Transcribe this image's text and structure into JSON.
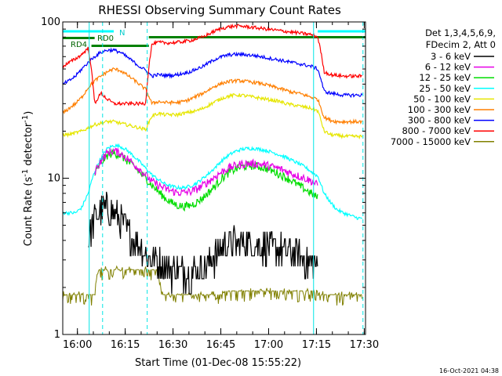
{
  "chart_data": {
    "type": "line",
    "title": "RHESSI Observing Summary Count Rates",
    "xlabel": "Start Time (01-Dec-08 15:55:22)",
    "ylabel": "Count Rate (s⁻¹ detector⁻¹)",
    "ylabel_main": "Count Rate (s",
    "ylabel_sup1": "-1",
    "ylabel_mid": " detector",
    "ylabel_sup2": "-1",
    "ylabel_end": ")",
    "y_scale": "log",
    "ylim": [
      1,
      100
    ],
    "y_ticks": [
      "1",
      "10",
      "100"
    ],
    "xlim_minutes": [
      0,
      95
    ],
    "x_ticks": [
      "16:00",
      "16:15",
      "16:30",
      "16:45",
      "17:00",
      "17:15",
      "17:30"
    ],
    "x_ticks_minutes": [
      4.6,
      19.6,
      34.6,
      49.6,
      64.6,
      79.6,
      94.6
    ],
    "legend": {
      "placement": "right",
      "header": [
        "Det 1,3,4,5,6,9,",
        "FDecim 2, Att 0"
      ]
    },
    "series": [
      {
        "name": "3 - 6 keV",
        "color": "#000000",
        "t": [
          8,
          10,
          12,
          14,
          16,
          18,
          20,
          22,
          24,
          26,
          28,
          30,
          32,
          34,
          36,
          38,
          40,
          42,
          44,
          46,
          48,
          50,
          52,
          54,
          56,
          58,
          60,
          62,
          64,
          66,
          68,
          70,
          72,
          74,
          76,
          78,
          80
        ],
        "values": [
          4,
          5.5,
          6.3,
          6.3,
          6,
          5.3,
          4.7,
          4,
          3.7,
          3.3,
          3,
          2.9,
          2.7,
          2.6,
          2.6,
          2.5,
          2.5,
          2.6,
          2.7,
          2.9,
          3.2,
          3.6,
          3.8,
          3.8,
          3.8,
          3.8,
          3.8,
          3.7,
          3.6,
          3.5,
          3.5,
          3.4,
          3.4,
          3.2,
          3,
          2.8,
          2.7
        ]
      },
      {
        "name": "6 - 12 keV",
        "color": "#e600e6",
        "t": [
          10,
          12,
          14,
          16,
          18,
          20,
          22,
          24,
          26,
          28,
          30,
          32,
          34,
          36,
          38,
          40,
          42,
          44,
          46,
          48,
          50,
          52,
          54,
          56,
          58,
          60,
          62,
          64,
          66,
          68,
          70,
          72,
          74,
          76,
          78,
          80
        ],
        "values": [
          11,
          13,
          14.5,
          15,
          14.5,
          13.5,
          12.5,
          11.5,
          10.5,
          9.5,
          9,
          8.6,
          8.3,
          8.1,
          8.1,
          8.2,
          8.5,
          9,
          9.6,
          10.3,
          11,
          11.6,
          12,
          12.3,
          12.4,
          12.4,
          12.3,
          12.1,
          11.8,
          11.5,
          11.1,
          10.7,
          10.3,
          10,
          9.6,
          9
        ]
      },
      {
        "name": "12 - 25 keV",
        "color": "#00dd00",
        "t": [
          10,
          12,
          14,
          16,
          18,
          20,
          22,
          24,
          26,
          28,
          30,
          32,
          34,
          36,
          38,
          40,
          42,
          44,
          46,
          48,
          50,
          52,
          54,
          56,
          58,
          60,
          62,
          64,
          66,
          68,
          70,
          72,
          74,
          76,
          78,
          80
        ],
        "values": [
          10.5,
          12.5,
          14,
          14.5,
          14,
          13,
          12,
          11,
          10,
          9,
          8.2,
          7.5,
          7,
          6.7,
          6.6,
          6.7,
          7,
          7.5,
          8.2,
          9,
          10,
          10.8,
          11.4,
          11.8,
          12,
          12,
          11.8,
          11.5,
          11.1,
          10.6,
          10.1,
          9.6,
          9,
          8.5,
          8,
          7.5
        ]
      },
      {
        "name": "25 - 50 keV",
        "color": "#00ffff",
        "t": [
          0,
          2,
          4,
          6,
          8,
          10,
          12,
          14,
          16,
          18,
          20,
          22,
          24,
          26,
          28,
          30,
          32,
          34,
          36,
          38,
          40,
          42,
          44,
          46,
          48,
          50,
          52,
          54,
          56,
          58,
          60,
          62,
          64,
          66,
          68,
          70,
          72,
          74,
          76,
          78,
          80,
          82,
          84,
          86,
          88,
          90,
          92,
          94
        ],
        "values": [
          6,
          6,
          6,
          6.5,
          8,
          11,
          13.5,
          15.5,
          16.2,
          16,
          15.2,
          14,
          12.8,
          11.6,
          10.5,
          9.8,
          9.2,
          8.9,
          8.7,
          8.7,
          8.9,
          9.3,
          10,
          10.8,
          11.8,
          13,
          14,
          14.8,
          15.3,
          15.5,
          15.5,
          15.3,
          15,
          14.6,
          14.1,
          13.6,
          13,
          12.4,
          11.8,
          11,
          10.3,
          8,
          7,
          6.3,
          6,
          5.8,
          5.6,
          5.5
        ]
      },
      {
        "name": "50 - 100 keV",
        "color": "#e6e600",
        "t": [
          0,
          2,
          4,
          6,
          8,
          10,
          12,
          14,
          16,
          18,
          20,
          22,
          24,
          26,
          28,
          30,
          32,
          34,
          36,
          38,
          40,
          42,
          44,
          46,
          48,
          50,
          52,
          54,
          56,
          58,
          60,
          62,
          64,
          66,
          68,
          70,
          72,
          74,
          76,
          78,
          80,
          82,
          84,
          86,
          88,
          90,
          92,
          94
        ],
        "values": [
          19,
          19,
          19.5,
          20,
          21,
          22,
          22.5,
          23,
          23,
          22.5,
          22,
          21.5,
          21,
          20.5,
          25,
          26,
          25.5,
          25.5,
          25.5,
          26,
          26.5,
          27,
          28,
          29.5,
          31,
          32.5,
          33.5,
          34,
          34,
          33.5,
          33,
          32.5,
          32,
          31.5,
          31,
          30,
          29.5,
          29,
          28.5,
          28,
          27,
          20,
          19,
          18.8,
          18.6,
          18.5,
          18.5,
          18.5
        ]
      },
      {
        "name": "100 - 300 keV",
        "color": "#ff7f00",
        "t": [
          0,
          2,
          4,
          6,
          8,
          10,
          12,
          14,
          16,
          18,
          20,
          22,
          24,
          26,
          28,
          30,
          32,
          34,
          36,
          38,
          40,
          42,
          44,
          46,
          48,
          50,
          52,
          54,
          56,
          58,
          60,
          62,
          64,
          66,
          68,
          70,
          72,
          74,
          76,
          78,
          80,
          82,
          84,
          86,
          88,
          90,
          92,
          94
        ],
        "values": [
          26,
          28,
          30,
          33,
          38,
          42,
          45,
          48,
          50,
          49,
          46,
          43,
          40,
          37,
          30,
          31,
          30.5,
          30.5,
          30.5,
          31,
          32,
          33.5,
          35,
          37,
          39,
          40.5,
          41.5,
          42,
          42,
          41.5,
          41,
          40.5,
          39.5,
          38.5,
          37.5,
          36.5,
          35.5,
          35,
          34,
          33,
          32,
          24.5,
          23.5,
          23,
          23,
          23,
          23,
          23
        ]
      },
      {
        "name": "300 - 800 keV",
        "color": "#0000ff",
        "t": [
          0,
          2,
          4,
          6,
          8,
          10,
          12,
          14,
          16,
          18,
          20,
          22,
          24,
          26,
          28,
          30,
          32,
          34,
          36,
          38,
          40,
          42,
          44,
          46,
          48,
          50,
          52,
          54,
          56,
          58,
          60,
          62,
          64,
          66,
          68,
          70,
          72,
          74,
          76,
          78,
          80,
          82,
          84,
          86,
          88,
          90,
          92,
          94
        ],
        "values": [
          40,
          42,
          45,
          50,
          55,
          60,
          64,
          66,
          66,
          64,
          60,
          56,
          52,
          49,
          45,
          46,
          45.5,
          45.5,
          46,
          47,
          48,
          50,
          52,
          55,
          58,
          60,
          61.5,
          62,
          62,
          61.5,
          61,
          60,
          59,
          58,
          57,
          56,
          55,
          54,
          53,
          52,
          50,
          36,
          35,
          34.5,
          34,
          34,
          34,
          34
        ]
      },
      {
        "name": "800 - 7000 keV",
        "color": "#ff0000",
        "t": [
          0,
          2,
          4,
          6,
          8,
          10,
          12,
          14,
          16,
          18,
          20,
          22,
          24,
          26,
          28,
          30,
          32,
          34,
          36,
          38,
          40,
          42,
          44,
          46,
          48,
          50,
          52,
          54,
          56,
          58,
          60,
          62,
          64,
          66,
          68,
          70,
          72,
          74,
          76,
          78,
          80,
          82,
          84,
          86,
          88,
          90,
          92,
          94
        ],
        "values": [
          52,
          55,
          58,
          62,
          68,
          30,
          35,
          32,
          30,
          30,
          30,
          30,
          30,
          30,
          72,
          74,
          73.5,
          73.5,
          74,
          75,
          76,
          78,
          80,
          84,
          88,
          91,
          93,
          94,
          94,
          93,
          92,
          91,
          90,
          89,
          88,
          87,
          86,
          85,
          84,
          83,
          80,
          48,
          46,
          45.5,
          45,
          45,
          45,
          45
        ]
      },
      {
        "name": "7000 - 15000 keV",
        "color": "#808000",
        "t": [
          0,
          10,
          11,
          30,
          31,
          50,
          51,
          80,
          81,
          94
        ],
        "values": [
          1.8,
          1.8,
          2.6,
          2.6,
          1.8,
          1.8,
          1.9,
          1.9,
          1.8,
          1.8
        ]
      }
    ],
    "annotations": {
      "attenuator_labels": [
        "N",
        "RD0",
        "RD4"
      ],
      "bars": [
        {
          "label": "N",
          "color": "#00ffff",
          "t_start": 0,
          "t_end": 16
        },
        {
          "label": "N",
          "color": "#00ffff",
          "t_start": 80,
          "t_end": 95
        },
        {
          "label": "RD0",
          "color": "#008000",
          "t_start": 0,
          "t_end": 10
        },
        {
          "label": "RD4",
          "color": "#008000",
          "t_start": 9,
          "t_end": 27
        },
        {
          "label": "",
          "color": "#008000",
          "t_start": 27,
          "t_end": 95
        }
      ],
      "verticals": [
        {
          "t": 8.3,
          "style": "solid"
        },
        {
          "t": 12.5,
          "style": "dashed"
        },
        {
          "t": 26.5,
          "style": "dashed"
        },
        {
          "t": 78.7,
          "style": "solid"
        },
        {
          "t": 94.2,
          "style": "dashed"
        }
      ]
    }
  },
  "footer": {
    "timestamp": "16-Oct-2021 04:38"
  }
}
